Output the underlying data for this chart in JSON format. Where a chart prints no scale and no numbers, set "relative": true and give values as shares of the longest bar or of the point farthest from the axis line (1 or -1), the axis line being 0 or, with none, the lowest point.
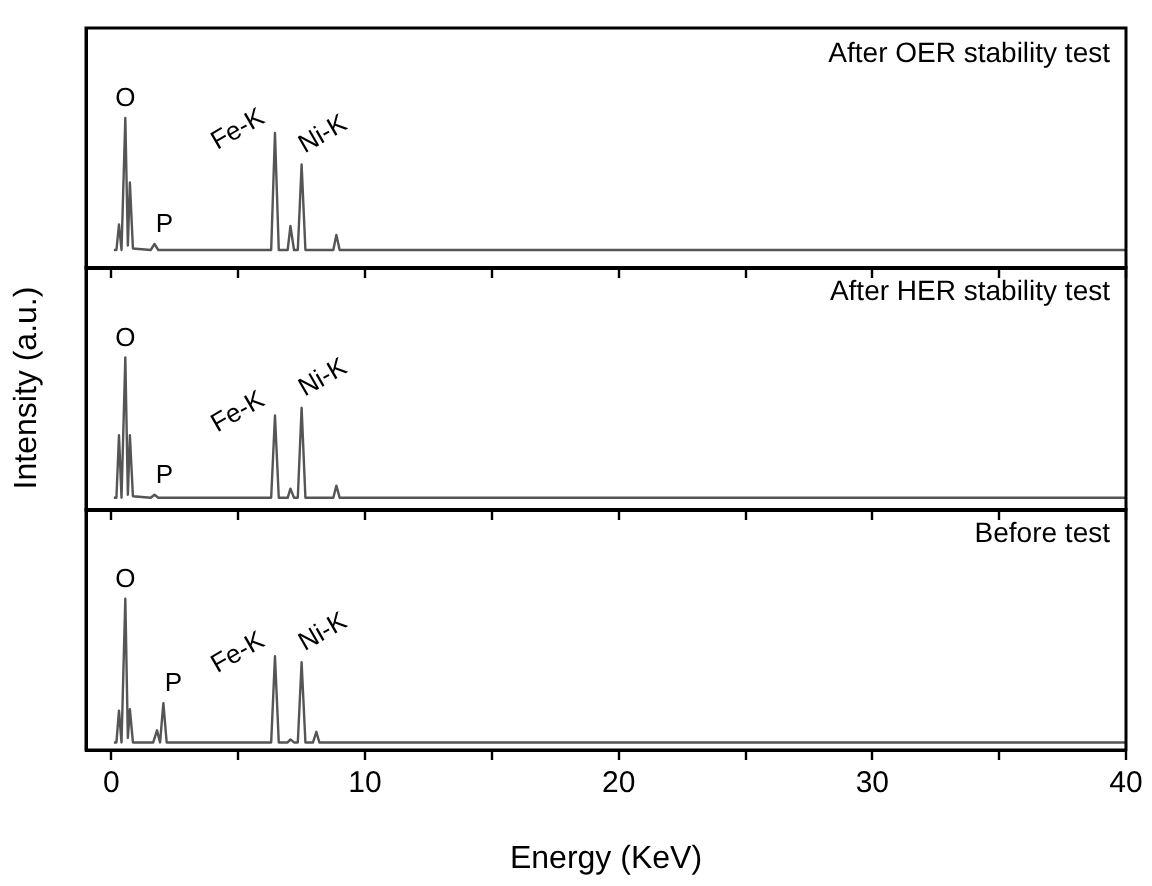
{
  "chart_data": [
    {
      "type": "line",
      "relative": true,
      "xlim": [
        -1,
        40
      ],
      "xticks": [
        {
          "value": 0,
          "label": null
        },
        {
          "value": 5,
          "label": null
        },
        {
          "value": 10,
          "label": null
        },
        {
          "value": 15,
          "label": null
        },
        {
          "value": 20,
          "label": null
        },
        {
          "value": 25,
          "label": null
        },
        {
          "value": 30,
          "label": null
        },
        {
          "value": 35,
          "label": null
        },
        {
          "value": 40,
          "label": null
        }
      ],
      "tick_labels": false,
      "grid": false,
      "legend": false,
      "marker": "none",
      "series": [
        {
          "color": "#555555",
          "x": [
            0.1,
            0.2,
            0.3,
            0.4,
            0.55,
            0.65,
            0.73,
            0.85,
            1.55,
            1.7,
            1.85,
            6.3,
            6.45,
            6.6,
            6.95,
            7.06,
            7.2,
            7.35,
            7.5,
            7.65,
            8.75,
            8.87,
            9.0,
            40
          ],
          "values": [
            0.12,
            0.12,
            0.29,
            0.12,
            1,
            0.15,
            0.57,
            0.13,
            0.12,
            0.16,
            0.12,
            0.12,
            0.9,
            0.12,
            0.12,
            0.28,
            0.12,
            0.12,
            0.69,
            0.12,
            0.12,
            0.22,
            0.12,
            0.12
          ]
        }
      ],
      "annotations": [
        "After OER stability test",
        {
          "text": "O",
          "x": 0.55,
          "y": 1
        },
        {
          "text": "P",
          "x": 1.7,
          "y": 0.16
        },
        {
          "text": "Fe-K",
          "x": 6.45,
          "y": 0.9
        },
        {
          "text": "Ni-K",
          "x": 7.5,
          "y": 0.69
        }
      ]
    },
    {
      "type": "line",
      "relative": true,
      "xlim": [
        -1,
        40
      ],
      "xticks": [
        {
          "value": 0,
          "label": null
        },
        {
          "value": 5,
          "label": null
        },
        {
          "value": 10,
          "label": null
        },
        {
          "value": 15,
          "label": null
        },
        {
          "value": 20,
          "label": null
        },
        {
          "value": 25,
          "label": null
        },
        {
          "value": 30,
          "label": null
        },
        {
          "value": 35,
          "label": null
        },
        {
          "value": 40,
          "label": null
        }
      ],
      "tick_labels": false,
      "grid": false,
      "legend": false,
      "marker": "none",
      "ylabel": "Intensity (a.u.)",
      "series": [
        {
          "color": "#555555",
          "x": [
            0.1,
            0.2,
            0.3,
            0.4,
            0.55,
            0.65,
            0.73,
            0.85,
            1.55,
            1.7,
            1.85,
            6.3,
            6.45,
            6.6,
            6.95,
            7.06,
            7.2,
            7.35,
            7.5,
            7.65,
            8.75,
            8.87,
            9.0,
            40
          ],
          "values": [
            0.08,
            0.08,
            0.49,
            0.08,
            1,
            0.1,
            0.49,
            0.09,
            0.08,
            0.1,
            0.08,
            0.08,
            0.62,
            0.08,
            0.08,
            0.14,
            0.08,
            0.08,
            0.67,
            0.08,
            0.08,
            0.16,
            0.08,
            0.08
          ]
        }
      ],
      "annotations": [
        "After HER stability test",
        {
          "text": "O",
          "x": 0.55,
          "y": 1
        },
        {
          "text": "P",
          "x": 1.7,
          "y": 0.1
        },
        {
          "text": "Fe-K",
          "x": 6.45,
          "y": 0.62
        },
        {
          "text": "Ni-K",
          "x": 7.5,
          "y": 0.67
        }
      ]
    },
    {
      "type": "line",
      "relative": true,
      "xlim": [
        -1,
        40
      ],
      "xticks": [
        0,
        {
          "value": 5,
          "label": null
        },
        10,
        {
          "value": 15,
          "label": null
        },
        20,
        {
          "value": 25,
          "label": null
        },
        30,
        {
          "value": 35,
          "label": null
        },
        40
      ],
      "tick_labels": "x",
      "grid": false,
      "legend": false,
      "marker": "none",
      "xlabel": "Energy (KeV)",
      "series": [
        {
          "color": "#555555",
          "x": [
            0.1,
            0.2,
            0.3,
            0.4,
            0.55,
            0.65,
            0.73,
            0.85,
            1.65,
            1.8,
            1.92,
            2.05,
            2.18,
            6.3,
            6.45,
            6.6,
            6.95,
            7.06,
            7.2,
            7.35,
            7.5,
            7.65,
            7.95,
            8.08,
            8.2,
            40
          ],
          "values": [
            0.05,
            0.05,
            0.26,
            0.05,
            1,
            0.08,
            0.27,
            0.05,
            0.05,
            0.13,
            0.05,
            0.31,
            0.05,
            0.05,
            0.62,
            0.05,
            0.05,
            0.07,
            0.05,
            0.05,
            0.58,
            0.05,
            0.05,
            0.12,
            0.05,
            0.05
          ]
        }
      ],
      "annotations": [
        "Before test",
        {
          "text": "O",
          "x": 0.55,
          "y": 1
        },
        {
          "text": "P",
          "x": 2.05,
          "y": 0.31
        },
        {
          "text": "Fe-K",
          "x": 6.45,
          "y": 0.62
        },
        {
          "text": "Ni-K",
          "x": 7.5,
          "y": 0.58
        }
      ]
    }
  ]
}
